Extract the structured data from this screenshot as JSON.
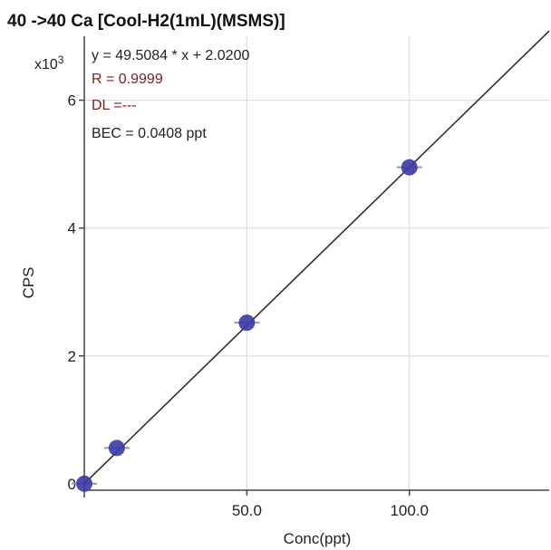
{
  "chart_data": {
    "type": "scatter",
    "title": "40 ->40 Ca [Cool-H2(1mL)(MSMS)]",
    "xlabel": "Conc(ppt)",
    "ylabel": "CPS",
    "y_scale_label": "x10",
    "y_scale_exponent": "3",
    "xlim": [
      0,
      143
    ],
    "ylim": [
      -0.1,
      7.0
    ],
    "x_ticks": [
      {
        "value": 50,
        "label": "50.0"
      },
      {
        "value": 100,
        "label": "100.0"
      }
    ],
    "y_ticks": [
      {
        "value": 0,
        "label": "0"
      },
      {
        "value": 2,
        "label": "2"
      },
      {
        "value": 4,
        "label": "4"
      },
      {
        "value": 6,
        "label": "6"
      }
    ],
    "grid": true,
    "points": [
      {
        "x": 0,
        "y": 0.002
      },
      {
        "x": 10,
        "y": 0.56
      },
      {
        "x": 50,
        "y": 2.52
      },
      {
        "x": 100,
        "y": 4.95
      }
    ],
    "fit": {
      "slope": 49.5084,
      "intercept": 2.02
    },
    "annotations": [
      "y = 49.5084 * x  + 2.0200",
      "R =  0.9999",
      "DL =---",
      "BEC = 0.0408 ppt"
    ],
    "colors": {
      "points": "#3a3aa8",
      "fit_line": "#3a2a2a",
      "grid": "#d8d8d8",
      "axis": "#444444"
    }
  }
}
